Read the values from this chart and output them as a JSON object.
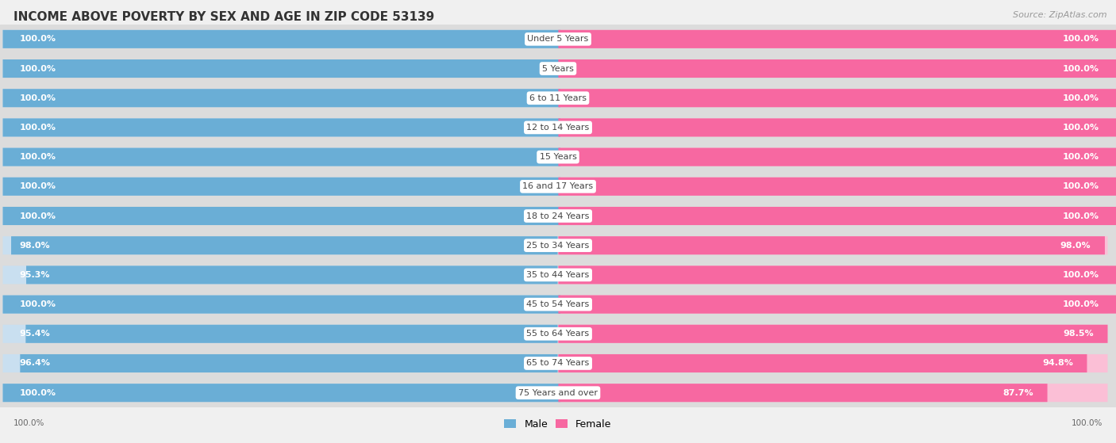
{
  "title": "INCOME ABOVE POVERTY BY SEX AND AGE IN ZIP CODE 53139",
  "source": "Source: ZipAtlas.com",
  "categories": [
    "Under 5 Years",
    "5 Years",
    "6 to 11 Years",
    "12 to 14 Years",
    "15 Years",
    "16 and 17 Years",
    "18 to 24 Years",
    "25 to 34 Years",
    "35 to 44 Years",
    "45 to 54 Years",
    "55 to 64 Years",
    "65 to 74 Years",
    "75 Years and over"
  ],
  "male_values": [
    100.0,
    100.0,
    100.0,
    100.0,
    100.0,
    100.0,
    100.0,
    98.0,
    95.3,
    100.0,
    95.4,
    96.4,
    100.0
  ],
  "female_values": [
    100.0,
    100.0,
    100.0,
    100.0,
    100.0,
    100.0,
    100.0,
    98.0,
    100.0,
    100.0,
    98.5,
    94.8,
    87.7
  ],
  "male_color": "#6aaed6",
  "female_color": "#f768a1",
  "male_light_color": "#c9dff0",
  "female_light_color": "#fbbfd6",
  "bg_row_color": "#e8e8e8",
  "background_color": "#f0f0f0",
  "title_fontsize": 11,
  "source_fontsize": 8,
  "value_fontsize": 8,
  "cat_fontsize": 8,
  "legend_fontsize": 9
}
